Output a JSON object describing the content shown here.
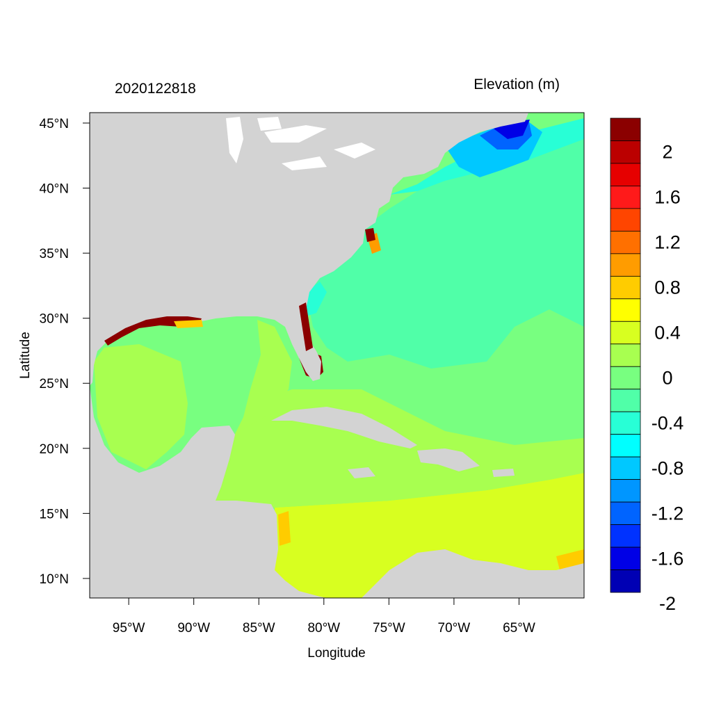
{
  "figure": {
    "left_title": "2020122818",
    "right_title": "Elevation (m)",
    "x_axis_label": "Longitude",
    "y_axis_label": "Latitude"
  },
  "axes": {
    "lon_ticks": [
      {
        "value": -95,
        "label": "95°W"
      },
      {
        "value": -90,
        "label": "90°W"
      },
      {
        "value": -85,
        "label": "85°W"
      },
      {
        "value": -80,
        "label": "80°W"
      },
      {
        "value": -75,
        "label": "75°W"
      },
      {
        "value": -70,
        "label": "70°W"
      },
      {
        "value": -65,
        "label": "65°W"
      }
    ],
    "lat_ticks": [
      {
        "value": 45,
        "label": "45°N"
      },
      {
        "value": 40,
        "label": "40°N"
      },
      {
        "value": 35,
        "label": "35°N"
      },
      {
        "value": 30,
        "label": "30°N"
      },
      {
        "value": 25,
        "label": "25°N"
      },
      {
        "value": 20,
        "label": "20°N"
      },
      {
        "value": 15,
        "label": "15°N"
      },
      {
        "value": 10,
        "label": "10°N"
      }
    ],
    "lon_range": [
      -98,
      -60
    ],
    "lat_range": [
      8.5,
      45.8
    ]
  },
  "colorbar": {
    "labels": [
      "2",
      "1.6",
      "1.2",
      "0.8",
      "0.4",
      "0",
      "-0.4",
      "-0.8",
      "-1.2",
      "-1.6",
      "-2"
    ],
    "colors_top_to_bottom": [
      "#8b0000",
      "#bb0000",
      "#e60000",
      "#ff1a1a",
      "#ff4500",
      "#ff7000",
      "#ff9c00",
      "#ffcc00",
      "#ffff00",
      "#d8ff20",
      "#a8ff50",
      "#78ff80",
      "#50ffa8",
      "#28ffd6",
      "#00ffff",
      "#00c8ff",
      "#0096ff",
      "#0064ff",
      "#0032ff",
      "#0000e6",
      "#0000b4"
    ]
  },
  "map": {
    "land_color": "#d3d3d3",
    "ocean_base_color": "#78ff80"
  }
}
